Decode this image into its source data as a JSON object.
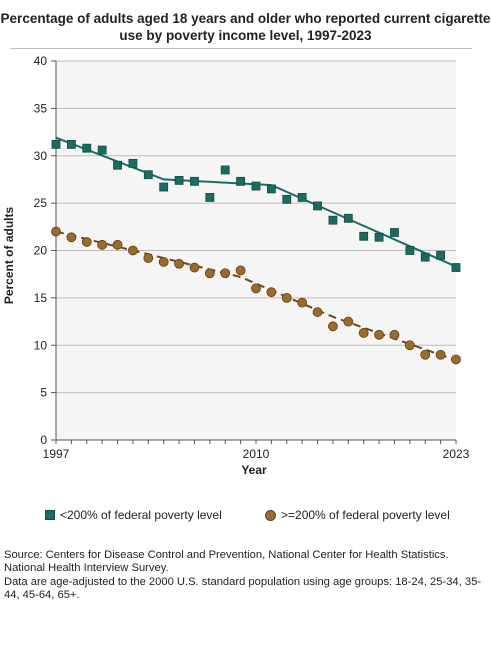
{
  "chart_data": {
    "type": "line",
    "title": "Percentage of adults aged 18 years and older who reported current cigarette use by poverty income level, 1997-2023",
    "xlabel": "Year",
    "ylabel": "Percent of adults",
    "xlim": [
      1997,
      2023
    ],
    "ylim": [
      0,
      40
    ],
    "y_ticks": [
      0,
      5,
      10,
      15,
      20,
      25,
      30,
      35,
      40
    ],
    "x_ticks": [
      1997,
      2010,
      2023
    ],
    "x_tick_labels": [
      "1997",
      "2010",
      "2023"
    ],
    "grid": "horizontal",
    "legend_position": "bottom",
    "x": [
      1997,
      1998,
      1999,
      2000,
      2001,
      2002,
      2003,
      2004,
      2005,
      2006,
      2007,
      2008,
      2009,
      2010,
      2011,
      2012,
      2013,
      2014,
      2015,
      2016,
      2017,
      2018,
      2019,
      2020,
      2021,
      2022,
      2023
    ],
    "series": [
      {
        "name": "<200% of federal poverty level",
        "marker": "square",
        "color": "#1b6b63",
        "values": [
          31.2,
          31.2,
          30.8,
          30.6,
          29.0,
          29.2,
          28.0,
          26.7,
          27.4,
          27.3,
          25.6,
          28.5,
          27.3,
          26.8,
          26.5,
          25.4,
          25.6,
          24.7,
          23.2,
          23.4,
          21.5,
          21.4,
          21.9,
          20.0,
          19.3,
          19.5,
          18.2
        ],
        "trend": [
          [
            1997,
            31.9
          ],
          [
            2004,
            27.5
          ],
          [
            2011,
            26.9
          ],
          [
            2023,
            18.3
          ]
        ],
        "trend_style": "solid"
      },
      {
        "name": ">=200% of federal poverty level",
        "marker": "circle",
        "color": "#9a6b2c",
        "values": [
          22.0,
          21.4,
          20.9,
          20.6,
          20.6,
          20.0,
          19.2,
          18.8,
          18.6,
          18.2,
          17.6,
          17.6,
          17.9,
          16.0,
          15.6,
          15.0,
          14.5,
          13.5,
          12.0,
          12.5,
          11.3,
          11.1,
          11.1,
          10.0,
          9.0,
          9.0,
          8.5
        ],
        "trend": [
          [
            1997,
            22.0
          ],
          [
            2009,
            17.2
          ],
          [
            2015,
            13.0
          ],
          [
            2023,
            8.4
          ]
        ],
        "trend_style": "dashed"
      }
    ]
  },
  "source": {
    "line1": "Source: Centers for Disease Control and Prevention, National Center for Health Statistics. National Health Interview Survey.",
    "line2": "Data are age-adjusted to the 2000 U.S. standard population using age groups: 18-24, 25-34, 35-44, 45-64, 65+."
  },
  "colors": {
    "plot_background": "#f5f5f5",
    "grid": "#bdbdbd",
    "series_low": "#1b6b63",
    "series_high": "#9a6b2c"
  }
}
